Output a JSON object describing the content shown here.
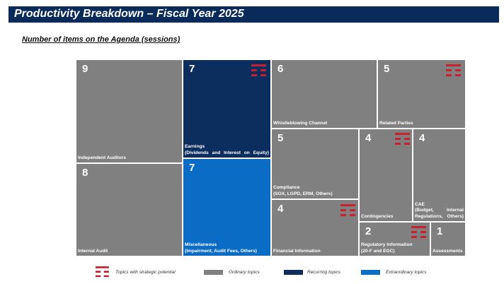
{
  "header": {
    "title": "Productivity Breakdown – Fiscal Year 2025",
    "subtitle": "Number of items on the Agenda (sessions)"
  },
  "colors": {
    "banner": "#0a2a5a",
    "ordinary": "#808080",
    "recurring": "#0b2e5f",
    "extraordinary": "#0a6cc4",
    "strategic_icon": "#c8202e"
  },
  "chart_data": {
    "type": "treemap",
    "title": "Number of items on the Agenda (sessions)",
    "items": [
      {
        "label": "Independent Auditors",
        "value": 9,
        "category": "ordinary",
        "strategic": false
      },
      {
        "label": "Internal Audit",
        "value": 8,
        "category": "ordinary",
        "strategic": false
      },
      {
        "label": "Earnings\n(Dividends and Interest on Equity)",
        "value": 7,
        "category": "recurring",
        "strategic": true
      },
      {
        "label": "Miscellaneous\n(Impairment, Audit Fees, Others)",
        "value": 7,
        "category": "extraordinary",
        "strategic": false
      },
      {
        "label": "Whistleblowing Channel",
        "value": 6,
        "category": "ordinary",
        "strategic": false
      },
      {
        "label": "Related Parties",
        "value": 5,
        "category": "ordinary",
        "strategic": true
      },
      {
        "label": "Compliance\n(SOX, LGPD, ERM, Others)",
        "value": 5,
        "category": "ordinary",
        "strategic": false
      },
      {
        "label": "Contingencies",
        "value": 4,
        "category": "ordinary",
        "strategic": true
      },
      {
        "label": "CAE\n(Budget, Internal Regulations, Others)",
        "value": 4,
        "category": "ordinary",
        "strategic": false
      },
      {
        "label": "Financial Information",
        "value": 4,
        "category": "ordinary",
        "strategic": true
      },
      {
        "label": "Regulatory Information\n(20-F and EGC)",
        "value": 2,
        "category": "ordinary",
        "strategic": true
      },
      {
        "label": "Assessments",
        "value": 1,
        "category": "ordinary",
        "strategic": false
      }
    ],
    "legend": [
      {
        "key": "strategic",
        "label": "Topics with strategic potential"
      },
      {
        "key": "ordinary",
        "label": "Ordinary topics"
      },
      {
        "key": "recurring",
        "label": "Recurring topics"
      },
      {
        "key": "extraordinary",
        "label": "Extraordinary topics"
      }
    ]
  }
}
